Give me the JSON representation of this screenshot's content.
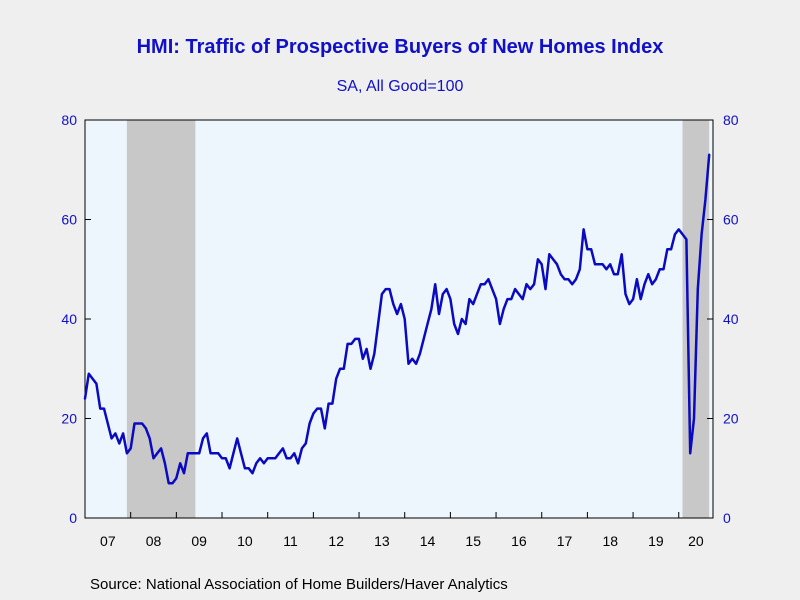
{
  "chart_data": {
    "type": "line",
    "title": "HMI: Traffic of Prospective Buyers of New Homes Index",
    "subtitle": "SA, All Good=100",
    "source": "Source:  National Association of Home Builders/Haver Analytics",
    "ylim": [
      0,
      80
    ],
    "y_ticks": [
      0,
      20,
      40,
      60,
      80
    ],
    "y_tick_labels": [
      "0",
      "20",
      "40",
      "60",
      "80"
    ],
    "x_start": 2007.0,
    "x_end": 2020.75,
    "x_tick_labels": [
      "07",
      "08",
      "09",
      "10",
      "11",
      "12",
      "13",
      "14",
      "15",
      "16",
      "17",
      "18",
      "19",
      "20"
    ],
    "recessions": [
      [
        2007.917,
        2009.417
      ],
      [
        2020.083,
        2020.667
      ]
    ],
    "series": [
      {
        "color": "#0a0ac0",
        "start": 2007.0,
        "step_months": 1,
        "values": [
          24,
          29,
          28,
          27,
          22,
          22,
          19,
          16,
          17,
          15,
          17,
          13,
          14,
          19,
          19,
          19,
          18,
          16,
          12,
          13,
          14,
          11,
          7,
          7,
          8,
          11,
          9,
          13,
          13,
          13,
          13,
          16,
          17,
          13,
          13,
          13,
          12,
          12,
          10,
          13,
          16,
          13,
          10,
          10,
          9,
          11,
          12,
          11,
          12,
          12,
          12,
          13,
          14,
          12,
          12,
          13,
          11,
          14,
          15,
          19,
          21,
          22,
          22,
          18,
          23,
          23,
          28,
          30,
          30,
          35,
          35,
          36,
          36,
          32,
          34,
          30,
          33,
          39,
          45,
          46,
          46,
          43,
          41,
          43,
          40,
          31,
          32,
          31,
          33,
          36,
          39,
          42,
          47,
          41,
          45,
          46,
          44,
          39,
          37,
          40,
          39,
          44,
          43,
          45,
          47,
          47,
          48,
          46,
          44,
          39,
          42,
          44,
          44,
          46,
          45,
          44,
          47,
          46,
          47,
          52,
          51,
          46,
          53,
          52,
          51,
          49,
          48,
          48,
          47,
          48,
          50,
          58,
          54,
          54,
          51,
          51,
          51,
          50,
          51,
          49,
          49,
          53,
          45,
          43,
          44,
          48,
          44,
          47,
          49,
          47,
          48,
          50,
          50,
          54,
          54,
          57,
          58,
          57,
          56,
          13,
          20,
          46,
          57,
          64,
          73
        ]
      }
    ]
  }
}
